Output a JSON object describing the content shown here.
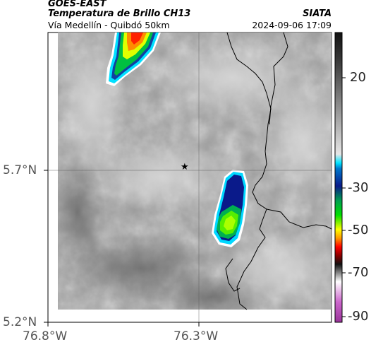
{
  "header": {
    "satellite": "GOES-EAST",
    "product": "Temperatura de Brillo CH13",
    "agency": "SIATA",
    "region": "Vía Medellín - Quibdó 50km",
    "datetime": "2024-09-06 17:09"
  },
  "axes": {
    "x_ticks": [
      "76.8°W",
      "76.3°W"
    ],
    "y_ticks": [
      "5.7°N",
      "5.2°N"
    ]
  },
  "colorbar": {
    "tick_labels": [
      "20",
      "-30",
      "-50",
      "-70",
      "-90"
    ]
  },
  "marker": {
    "symbol": "★",
    "lon": -76.35,
    "lat": 5.7
  }
}
